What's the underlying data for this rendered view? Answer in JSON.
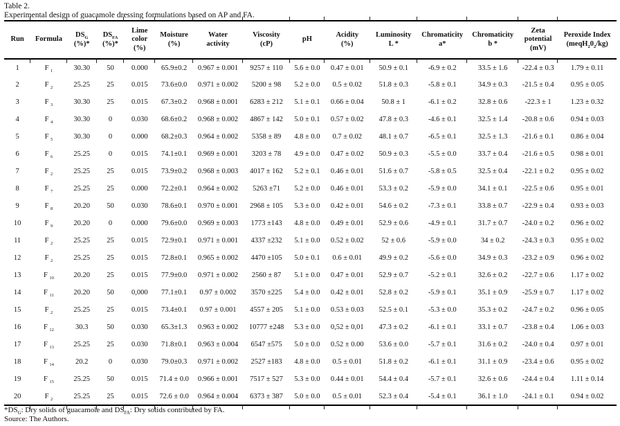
{
  "page": {
    "title": "Table 2.",
    "caption": "Experimental design of guacamole dressing formulations based on AP and FA."
  },
  "table": {
    "formula_prefix": "F",
    "columns": [
      {
        "key": "run",
        "label_html": "Run"
      },
      {
        "key": "formula",
        "label_html": "Formula"
      },
      {
        "key": "ds-g",
        "label_html": "DS<sub>G</sub><br>(%)*"
      },
      {
        "key": "ds-fa",
        "label_html": "DS<sub>FA</sub><br>(%)*"
      },
      {
        "key": "lime-color",
        "label_html": "Lime<br>color<br>(%)"
      },
      {
        "key": "moisture",
        "label_html": "Moisture<br>(%)"
      },
      {
        "key": "water-activity",
        "label_html": "Water<br>activity"
      },
      {
        "key": "viscosity",
        "label_html": "Viscosity<br>(cP)"
      },
      {
        "key": "ph",
        "label_html": "pH"
      },
      {
        "key": "acidity",
        "label_html": "Acidity<br>(%)"
      },
      {
        "key": "luminosity-l",
        "label_html": "Luminosity<br>L *"
      },
      {
        "key": "chromaticity-a",
        "label_html": "Chromaticity<br>a*"
      },
      {
        "key": "chromaticity-b",
        "label_html": "Chromaticity<br>b *"
      },
      {
        "key": "zeta-potential",
        "label_html": "Zeta<br>potential<br>(mV)"
      },
      {
        "key": "peroxide-index",
        "label_html": "Peroxide Index<br>(meqH<sub>2</sub>0<sub>2</sub>/kg)"
      }
    ],
    "rows": [
      {
        "run": "1",
        "formula_sub": "1",
        "values": [
          "30.30",
          "50",
          "0.000",
          "65.9±0.2",
          "0.967 ± 0.001",
          "9257 ± 110",
          "5.6 ± 0.0",
          "0.47 ± 0.01",
          "50.9 ± 0.1",
          "-6.9 ± 0.2",
          "33.5 ± 1.6",
          "-22.4 ± 0.3",
          "1.79 ± 0.11"
        ]
      },
      {
        "run": "2",
        "formula_sub": "2",
        "values": [
          "25.25",
          "25",
          "0.015",
          "73.6±0.0",
          "0.971 ± 0.002",
          "5200 ± 98",
          "5.2 ± 0.0",
          "0.5 ± 0.02",
          "51.8 ± 0.3",
          "-5.8 ± 0.1",
          "34.9 ± 0.3",
          "-21.5 ± 0.4",
          "0.95 ± 0.05"
        ]
      },
      {
        "run": "3",
        "formula_sub": "3",
        "values": [
          "30.30",
          "25",
          "0.015",
          "67.3±0.2",
          "0.968 ± 0.001",
          "6283 ± 212",
          "5.1 ± 0.1",
          "0.66 ± 0.04",
          "50.8 ± 1",
          "-6.1 ± 0.2",
          "32.8 ± 0.6",
          "-22.3 ± 1",
          "1.23 ± 0.32"
        ]
      },
      {
        "run": "4",
        "formula_sub": "4",
        "values": [
          "30.30",
          "0",
          "0.030",
          "68.6±0.2",
          "0.968 ± 0.002",
          "4867 ± 142",
          "5.0 ± 0.1",
          "0.57 ± 0.02",
          "47.8 ± 0.3",
          "-4.6 ± 0.1",
          "32.5 ± 1.4",
          "-20.8 ± 0.6",
          "0.94 ± 0.03"
        ]
      },
      {
        "run": "5",
        "formula_sub": "5",
        "values": [
          "30.30",
          "0",
          "0.000",
          "68.2±0.3",
          "0.964 ± 0.002",
          "5358 ± 89",
          "4.8 ± 0.0",
          "0.7 ± 0.02",
          "48.1 ± 0.7",
          "-6.5 ± 0.1",
          "32.5 ± 1.3",
          "-21.6 ± 0.1",
          "0.86 ± 0.04"
        ]
      },
      {
        "run": "6",
        "formula_sub": "6",
        "values": [
          "25.25",
          "0",
          "0.015",
          "74.1±0.1",
          "0.969 ± 0.001",
          "3203 ± 78",
          "4.9 ± 0.0",
          "0.47 ± 0.02",
          "50.9 ± 0.3",
          "-5.5 ± 0.0",
          "33.7 ± 0.4",
          "-21.6 ± 0.5",
          "0.98 ± 0.01"
        ]
      },
      {
        "run": "7",
        "formula_sub": "2",
        "values": [
          "25.25",
          "25",
          "0.015",
          "73.9±0.2",
          "0.968 ± 0.003",
          "4017 ± 162",
          "5.2 ± 0.1",
          "0.46 ± 0.01",
          "51.6 ± 0.7",
          "-5.8 ± 0.5",
          "32.5 ± 0.4",
          "-22.1 ± 0.2",
          "0.95 ± 0.02"
        ]
      },
      {
        "run": "8",
        "formula_sub": "7",
        "values": [
          "25.25",
          "25",
          "0.000",
          "72.2±0.1",
          "0.964 ± 0.002",
          "5263 ±71",
          "5.2 ± 0.0",
          "0.46 ± 0.01",
          "53.3 ± 0.2",
          "-5.9 ± 0.0",
          "34.1 ± 0.1",
          "-22.5 ± 0.6",
          "0.95 ± 0.01"
        ]
      },
      {
        "run": "9",
        "formula_sub": "8",
        "values": [
          "20.20",
          "50",
          "0.030",
          "78.6±0.1",
          "0.970 ± 0.001",
          "2968 ± 105",
          "5.3 ± 0.0",
          "0.42 ± 0.01",
          "54.6 ± 0.2",
          "-7.3 ± 0.1",
          "33.8 ± 0.7",
          "-22.9 ± 0.4",
          "0.93 ± 0.03"
        ]
      },
      {
        "run": "10",
        "formula_sub": "9",
        "values": [
          "20.20",
          "0",
          "0.000",
          "79.6±0.0",
          "0.969 ± 0.003",
          "1773 ±143",
          "4.8 ± 0.0",
          "0.49 ± 0.01",
          "52.9 ± 0.6",
          "-4.9 ± 0.1",
          "31.7 ± 0.7",
          "-24.0 ± 0.2",
          "0.96 ± 0.02"
        ]
      },
      {
        "run": "11",
        "formula_sub": "2",
        "values": [
          "25.25",
          "25",
          "0.015",
          "72.9±0.1",
          "0.971 ± 0.001",
          "4337 ±232",
          "5.1 ± 0.0",
          "0.52 ± 0.02",
          "52 ± 0.6",
          "-5.9 ± 0.0",
          "34 ± 0.2",
          "-24.3 ± 0.3",
          "0.95 ± 0.02"
        ]
      },
      {
        "run": "12",
        "formula_sub": "2",
        "values": [
          "25.25",
          "25",
          "0.015",
          "72.8±0.1",
          "0.965 ± 0.002",
          "4470 ±105",
          "5.0 ± 0.1",
          "0.6 ± 0.01",
          "49.9 ± 0.2",
          "-5.6 ± 0.0",
          "34.9 ± 0.3",
          "-23.2 ± 0.9",
          "0.96 ± 0.02"
        ]
      },
      {
        "run": "13",
        "formula_sub": "10",
        "values": [
          "20.20",
          "25",
          "0.015",
          "77.9±0.0",
          "0.971 ± 0.002",
          "2560 ± 87",
          "5.1 ± 0.0",
          "0.47 ± 0.01",
          "52.9 ± 0.7",
          "-5.2 ± 0.1",
          "32.6 ± 0.2",
          "-22.7 ± 0.6",
          "1.17 ± 0.02"
        ]
      },
      {
        "run": "14",
        "formula_sub": "11",
        "values": [
          "20.20",
          "50",
          "0,000",
          "77.1±0.1",
          "0.97 ± 0.002",
          "3570 ±225",
          "5.4 ± 0.0",
          "0.42 ± 0.01",
          "52.8 ± 0.2",
          "-5.9 ± 0.1",
          "35.1 ± 0.9",
          "-25.9 ± 0.7",
          "1.17 ± 0.02"
        ]
      },
      {
        "run": "15",
        "formula_sub": "2",
        "values": [
          "25.25",
          "25",
          "0.015",
          "73.4±0.1",
          "0.97 ± 0.001",
          "4557 ± 205",
          "5.1 ± 0.0",
          "0.53 ± 0.03",
          "52.5 ± 0.1",
          "-5.3 ± 0.0",
          "35.3 ± 0.2",
          "-24.7 ± 0.2",
          "0.96 ± 0.05"
        ]
      },
      {
        "run": "16",
        "formula_sub": "12",
        "values": [
          "30.3",
          "50",
          "0.030",
          "65.3±1.3",
          "0.963 ± 0.002",
          "10777 ±248",
          "5.3 ± 0.0",
          "0,52 ± 0,01",
          "47.3 ± 0.2",
          "-6.1 ± 0.1",
          "33.1 ± 0.7",
          "-23.8 ± 0.4",
          "1.06 ± 0.03"
        ]
      },
      {
        "run": "17",
        "formula_sub": "13",
        "values": [
          "25.25",
          "25",
          "0.030",
          "71.8±0.1",
          "0.963 ± 0.004",
          "6547 ±575",
          "5.0 ± 0.0",
          "0.52 ± 0.00",
          "53.6 ± 0.0",
          "-5.7 ± 0.1",
          "31.6 ± 0.2",
          "-24.0 ± 0.4",
          "0.97 ± 0.01"
        ]
      },
      {
        "run": "18",
        "formula_sub": "14",
        "values": [
          "20.2",
          "0",
          "0.030",
          "79.0±0.3",
          "0.971 ± 0.002",
          "2527 ±183",
          "4.8 ± 0.0",
          "0.5 ± 0.01",
          "51.8 ± 0.2",
          "-6.1 ± 0.1",
          "31.1 ± 0.9",
          "-23.4 ± 0.6",
          "0.95 ± 0.02"
        ]
      },
      {
        "run": "19",
        "formula_sub": "15",
        "values": [
          "25.25",
          "50",
          "0.015",
          "71.4 ± 0.0",
          "0.966 ± 0.001",
          "7517 ± 527",
          "5.3 ± 0.0",
          "0.44 ± 0.01",
          "54.4 ± 0.4",
          "-5.7 ± 0.1",
          "32.6 ± 0.6",
          "-24.4 ± 0.4",
          "1.11 ± 0.14"
        ]
      },
      {
        "run": "20",
        "formula_sub": "2",
        "values": [
          "25.25",
          "25",
          "0.015",
          "72.6 ± 0.0",
          "0.964 ± 0.004",
          "6373 ± 387",
          "5.0 ± 0.0",
          "0.5 ± 0.01",
          "52.3 ± 0.4",
          "-5.4 ± 0.1",
          "36.1 ± 1.0",
          "-24.1 ± 0.1",
          "0.94 ± 0.02"
        ]
      }
    ]
  },
  "footnotes": {
    "line1_html": "*DS<sub>G</sub>: Dry solids of guacamole and DS<sub>FA</sub>: Dry solids contributed by FA.",
    "line2": "Source: The Authors."
  }
}
